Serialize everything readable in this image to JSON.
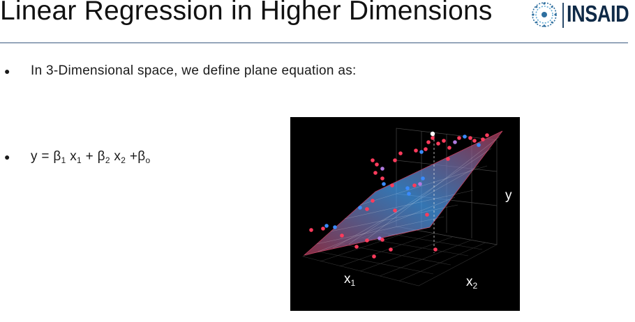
{
  "slide": {
    "title": "Linear Regression in Higher Dimensions",
    "logo": {
      "text": "INSAID",
      "icon": "insaid-globe-icon",
      "color": "#0f2a47"
    },
    "bullets": [
      {
        "text": "In 3-Dimensional space, we define plane equation as:"
      },
      {
        "equation": {
          "y": "y",
          "eq": "=",
          "b1": "β",
          "s1": "1",
          "x1": "x",
          "sx1": "1",
          "plus1": "+",
          "b2": "β",
          "s2": "2",
          "x2": "x",
          "sx2": "2",
          "plus2": "+",
          "b0": "β",
          "s0": "o"
        }
      }
    ],
    "figure": {
      "axis_x1": {
        "base": "x",
        "sub": "1"
      },
      "axis_x2": {
        "base": "x",
        "sub": "2"
      },
      "axis_y": "y",
      "colors": {
        "background": "#000000",
        "plane_red": "#b43c5a",
        "plane_blue": "#4aa8ff",
        "point_red": "#ff3b5c",
        "point_blue": "#3a8bff",
        "point_purple": "#b07ae0"
      }
    }
  }
}
